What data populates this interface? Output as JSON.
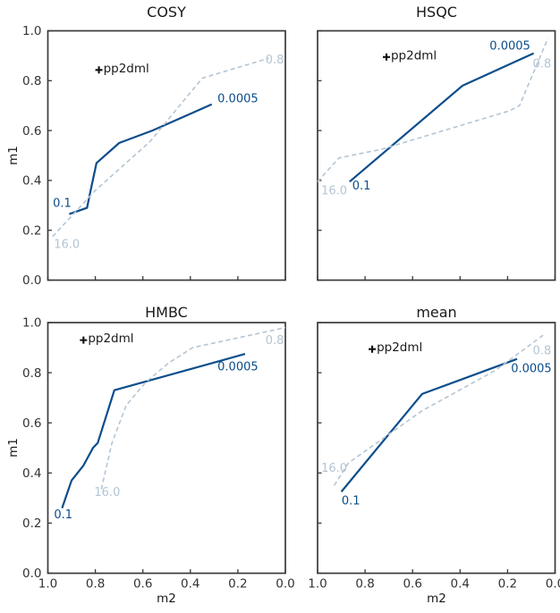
{
  "figure": {
    "background": "#ffffff",
    "axis_color": "#3a3a3a",
    "tick_label_color": "#333333",
    "text_color": "#1a1a1a",
    "solid_line_color": "#0b4d8b",
    "dashed_line_color": "#b4c5d3",
    "annotation_marker": "+",
    "annotation_text": "pp2dml"
  },
  "chart_data": [
    {
      "type": "line",
      "title": "COSY",
      "xlabel": "m2",
      "ylabel": "m1",
      "xlim": [
        1.0,
        0.0
      ],
      "ylim": [
        0.0,
        1.0
      ],
      "x_tick_labels": [
        "1.0",
        "0.8",
        "0.6",
        "0.4",
        "0.2",
        "0.0"
      ],
      "y_tick_labels": [
        "0.0",
        "0.2",
        "0.4",
        "0.6",
        "0.8",
        "1.0"
      ],
      "grid": false,
      "series": [
        {
          "name": "solid-threshold-curve",
          "style": "solid",
          "color": "#0b4d8b",
          "points": [
            [
              0.91,
              0.265
            ],
            [
              0.835,
              0.29
            ],
            [
              0.82,
              0.36
            ],
            [
              0.795,
              0.47
            ],
            [
              0.7,
              0.55
            ],
            [
              0.56,
              0.6
            ],
            [
              0.31,
              0.705
            ]
          ],
          "labels": [
            {
              "text": "0.1",
              "x": 0.94,
              "y": 0.31
            },
            {
              "text": "0.0005",
              "x": 0.2,
              "y": 0.73
            }
          ]
        },
        {
          "name": "dashed-baseline-curve",
          "style": "dashed",
          "color": "#b4c5d3",
          "points": [
            [
              0.98,
              0.175
            ],
            [
              0.8,
              0.36
            ],
            [
              0.57,
              0.556
            ],
            [
              0.35,
              0.81
            ],
            [
              0.07,
              0.89
            ]
          ],
          "labels": [
            {
              "text": "16.0",
              "x": 0.92,
              "y": 0.145
            },
            {
              "text": "0.8",
              "x": 0.045,
              "y": 0.885
            }
          ]
        }
      ],
      "annotation": {
        "text": "pp2dml",
        "x": 0.785,
        "y": 0.843
      }
    },
    {
      "type": "line",
      "title": "HSQC",
      "xlabel": "m2",
      "ylabel": "m1",
      "xlim": [
        1.0,
        0.0
      ],
      "ylim": [
        0.0,
        1.0
      ],
      "x_tick_labels": [
        "1.0",
        "0.8",
        "0.6",
        "0.4",
        "0.2",
        "0.0"
      ],
      "y_tick_labels": [
        "0.0",
        "0.2",
        "0.4",
        "0.6",
        "0.8",
        "1.0"
      ],
      "grid": false,
      "series": [
        {
          "name": "solid-threshold-curve",
          "style": "solid",
          "color": "#0b4d8b",
          "points": [
            [
              0.865,
              0.395
            ],
            [
              0.39,
              0.78
            ],
            [
              0.09,
              0.91
            ]
          ],
          "labels": [
            {
              "text": "0.1",
              "x": 0.815,
              "y": 0.38
            },
            {
              "text": "0.0005",
              "x": 0.19,
              "y": 0.94
            }
          ]
        },
        {
          "name": "dashed-baseline-curve",
          "style": "dashed",
          "color": "#b4c5d3",
          "points": [
            [
              1.0,
              0.395
            ],
            [
              0.91,
              0.49
            ],
            [
              0.73,
              0.525
            ],
            [
              0.19,
              0.68
            ],
            [
              0.15,
              0.7
            ],
            [
              0.03,
              0.97
            ]
          ],
          "labels": [
            {
              "text": "16.0",
              "x": 0.93,
              "y": 0.36
            },
            {
              "text": "0.8",
              "x": 0.055,
              "y": 0.87
            }
          ]
        }
      ],
      "annotation": {
        "text": "pp2dml",
        "x": 0.71,
        "y": 0.895
      }
    },
    {
      "type": "line",
      "title": "HMBC",
      "xlabel": "m2",
      "ylabel": "m1",
      "xlim": [
        1.0,
        0.0
      ],
      "ylim": [
        0.0,
        1.0
      ],
      "x_tick_labels": [
        "1.0",
        "0.8",
        "0.6",
        "0.4",
        "0.2",
        "0.0"
      ],
      "y_tick_labels": [
        "0.0",
        "0.2",
        "0.4",
        "0.6",
        "0.8",
        "1.0"
      ],
      "grid": false,
      "series": [
        {
          "name": "solid-threshold-curve",
          "style": "solid",
          "color": "#0b4d8b",
          "points": [
            [
              0.94,
              0.26
            ],
            [
              0.9,
              0.37
            ],
            [
              0.85,
              0.43
            ],
            [
              0.81,
              0.5
            ],
            [
              0.79,
              0.52
            ],
            [
              0.72,
              0.73
            ],
            [
              0.17,
              0.875
            ]
          ],
          "labels": [
            {
              "text": "0.1",
              "x": 0.935,
              "y": 0.235
            },
            {
              "text": "0.0005",
              "x": 0.2,
              "y": 0.825
            }
          ]
        },
        {
          "name": "dashed-baseline-curve",
          "style": "dashed",
          "color": "#b4c5d3",
          "points": [
            [
              0.775,
              0.335
            ],
            [
              0.73,
              0.52
            ],
            [
              0.67,
              0.67
            ],
            [
              0.59,
              0.76
            ],
            [
              0.49,
              0.84
            ],
            [
              0.39,
              0.9
            ],
            [
              0.0,
              0.98
            ]
          ],
          "labels": [
            {
              "text": "16.0",
              "x": 0.75,
              "y": 0.325
            },
            {
              "text": "0.8",
              "x": 0.045,
              "y": 0.93
            }
          ]
        }
      ],
      "annotation": {
        "text": "pp2dml",
        "x": 0.85,
        "y": 0.93
      }
    },
    {
      "type": "line",
      "title": "mean",
      "xlabel": "m2",
      "ylabel": "m1",
      "xlim": [
        1.0,
        0.0
      ],
      "ylim": [
        0.0,
        1.0
      ],
      "x_tick_labels": [
        "1.0",
        "0.8",
        "0.6",
        "0.4",
        "0.2",
        "0.0"
      ],
      "y_tick_labels": [
        "0.0",
        "0.2",
        "0.4",
        "0.6",
        "0.8",
        "1.0"
      ],
      "grid": false,
      "series": [
        {
          "name": "solid-threshold-curve",
          "style": "solid",
          "color": "#0b4d8b",
          "points": [
            [
              0.9,
              0.325
            ],
            [
              0.56,
              0.715
            ],
            [
              0.16,
              0.855
            ]
          ],
          "labels": [
            {
              "text": "0.1",
              "x": 0.86,
              "y": 0.29
            },
            {
              "text": "0.0005",
              "x": 0.1,
              "y": 0.818
            }
          ]
        },
        {
          "name": "dashed-baseline-curve",
          "style": "dashed",
          "color": "#b4c5d3",
          "points": [
            [
              0.93,
              0.35
            ],
            [
              0.87,
              0.44
            ],
            [
              0.56,
              0.648
            ],
            [
              0.25,
              0.81
            ],
            [
              0.04,
              0.957
            ]
          ],
          "labels": [
            {
              "text": "16.0",
              "x": 0.93,
              "y": 0.42
            },
            {
              "text": "0.8",
              "x": 0.055,
              "y": 0.89
            }
          ]
        }
      ],
      "annotation": {
        "text": "pp2dml",
        "x": 0.77,
        "y": 0.894
      }
    }
  ]
}
